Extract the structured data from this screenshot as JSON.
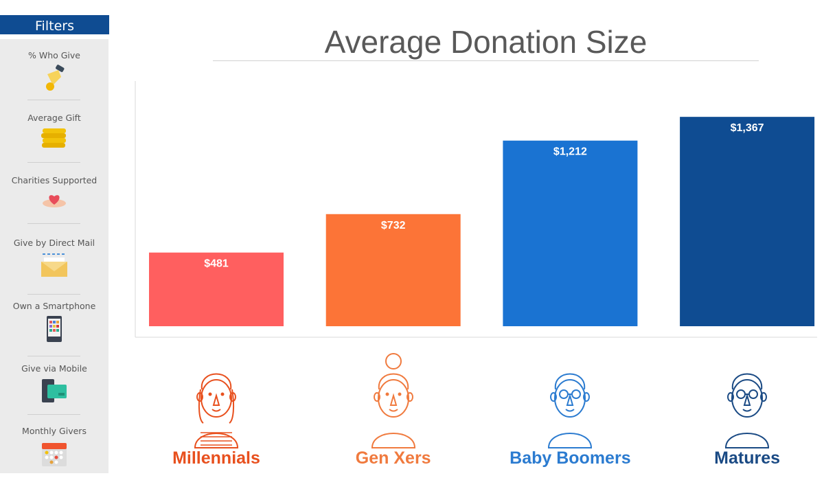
{
  "sidebar": {
    "header": "Filters",
    "items": [
      {
        "label": "% Who Give",
        "icon": "hand-coin-icon"
      },
      {
        "label": "Average Gift",
        "icon": "coin-stack-icon"
      },
      {
        "label": "Charities Supported",
        "icon": "heart-hand-icon"
      },
      {
        "label": "Give by Direct Mail",
        "icon": "envelope-icon"
      },
      {
        "label": "Own a Smartphone",
        "icon": "smartphone-icon"
      },
      {
        "label": "Give via Mobile",
        "icon": "mobile-payment-icon"
      },
      {
        "label": "Monthly Givers",
        "icon": "calendar-icon"
      }
    ]
  },
  "chart_data": {
    "type": "bar",
    "title": "Average Donation Size",
    "categories": [
      "Millennials",
      "Gen Xers",
      "Baby Boomers",
      "Matures"
    ],
    "values": [
      481,
      732,
      1212,
      1367
    ],
    "data_labels": [
      "$481",
      "$732",
      "$1,212",
      "$1,367"
    ],
    "colors": [
      "#FF5F5F",
      "#FC7437",
      "#1A73D2",
      "#0F4C92"
    ],
    "label_colors": [
      "#E8501E",
      "#F07A3E",
      "#2B7BD0",
      "#1A4A84"
    ],
    "ylim": [
      0,
      1600
    ],
    "grid": false,
    "legend": "none"
  }
}
